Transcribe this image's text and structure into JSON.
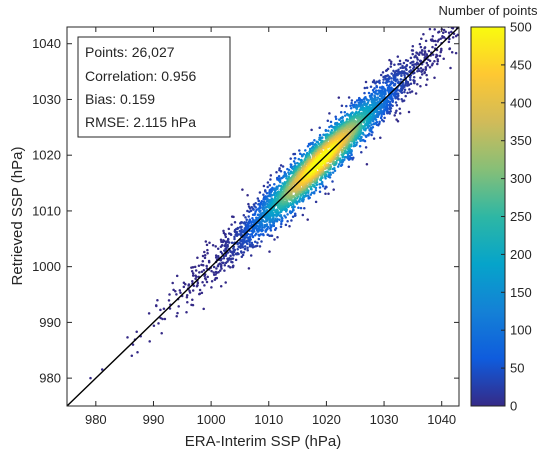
{
  "chart_data": {
    "type": "scatter",
    "subtype": "density-scatter",
    "title": "",
    "xlabel": "ERA-Interim SSP (hPa)",
    "ylabel": "Retrieved SSP (hPa)",
    "xlim": [
      975,
      1043
    ],
    "ylim": [
      975,
      1043
    ],
    "xticks": [
      980,
      990,
      1000,
      1010,
      1020,
      1030,
      1040
    ],
    "yticks": [
      980,
      990,
      1000,
      1010,
      1020,
      1030,
      1040
    ],
    "grid": false,
    "reference_line": {
      "type": "1:1",
      "color": "#000000"
    },
    "density_center": [
      1019,
      1019
    ],
    "stats": [
      "Points: 26,027",
      "Correlation: 0.956",
      "Bias: 0.159",
      "RMSE: 2.115 hPa"
    ],
    "stats_box_placement": "top-left",
    "colorbar": {
      "title": "Number of points",
      "range": [
        0,
        500
      ],
      "ticks": [
        0,
        50,
        100,
        150,
        200,
        250,
        300,
        350,
        400,
        450,
        500
      ],
      "colormap": "parula",
      "colors": [
        "#352a87",
        "#0f5cdd",
        "#1481d6",
        "#06a4ca",
        "#2eb7a4",
        "#87bf77",
        "#d1bb59",
        "#fec832",
        "#f9fb0e"
      ]
    }
  }
}
